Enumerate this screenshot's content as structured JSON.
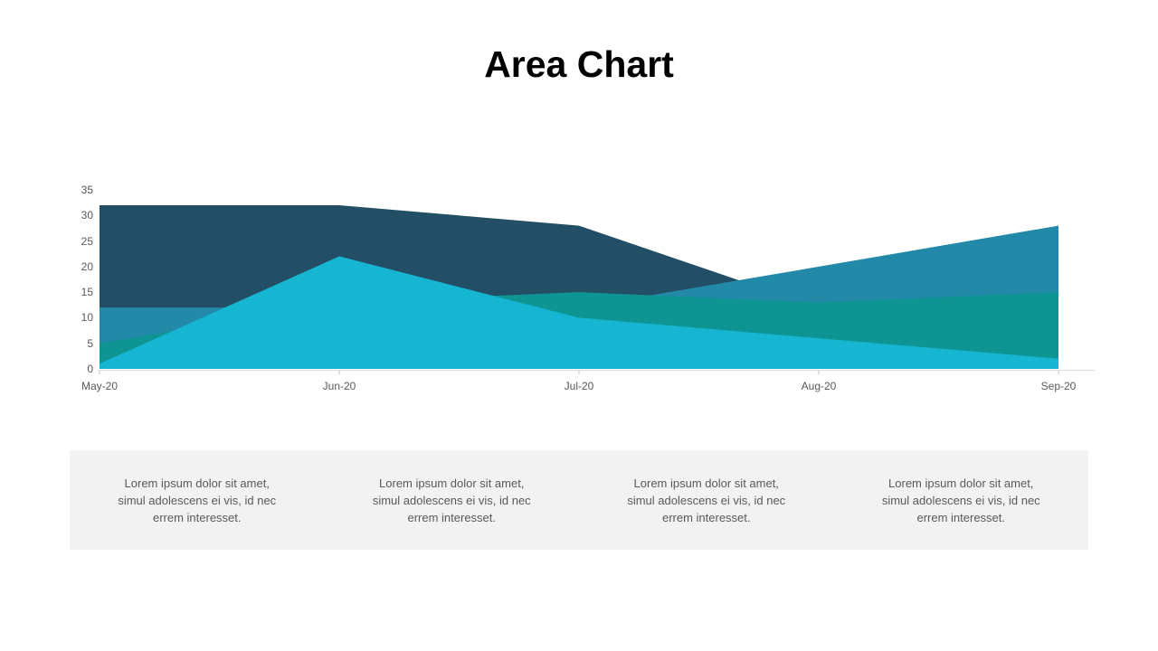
{
  "slide": {
    "title": "Area Chart"
  },
  "chart_data": {
    "type": "area",
    "stacked": false,
    "title": "Area Chart",
    "xlabel": "",
    "ylabel": "",
    "categories": [
      "May-20",
      "Jun-20",
      "Jul-20",
      "Aug-20",
      "Sep-20"
    ],
    "y_ticks": [
      0,
      5,
      10,
      15,
      20,
      25,
      30,
      35
    ],
    "ylim": [
      0,
      35
    ],
    "grid": false,
    "legend": "none",
    "axis_line_color": "#D9D9D9",
    "tick_mark_color": "#C6C6C6",
    "tick_label_color": "#595959",
    "series": [
      {
        "name": "navy",
        "color": "#234F66",
        "values": [
          32,
          32,
          28,
          12,
          10
        ]
      },
      {
        "name": "steel-blue",
        "color": "#2289A8",
        "values": [
          12,
          12,
          12,
          20,
          28
        ]
      },
      {
        "name": "teal",
        "color": "#0D9493",
        "values": [
          5,
          13,
          15,
          13,
          15
        ]
      },
      {
        "name": "cyan",
        "color": "#16B5D1",
        "values": [
          1,
          22,
          10,
          6,
          2
        ]
      }
    ]
  },
  "footer": {
    "background": "#F2F2F2",
    "text_color": "#595959",
    "items": [
      {
        "text": "Lorem ipsum dolor sit amet,\nsimul adolescens ei vis, id nec\nerrem interesset."
      },
      {
        "text": "Lorem ipsum dolor sit amet,\nsimul adolescens ei vis, id nec\nerrem interesset."
      },
      {
        "text": "Lorem ipsum dolor sit amet,\nsimul adolescens ei vis, id nec\nerrem interesset."
      },
      {
        "text": "Lorem ipsum dolor sit amet,\nsimul adolescens ei vis, id nec\nerrem interesset."
      }
    ]
  }
}
